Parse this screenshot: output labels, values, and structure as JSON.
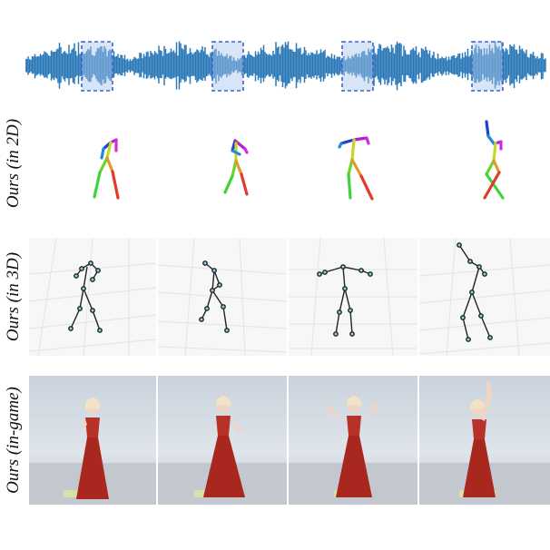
{
  "labels": {
    "row_2d": "Ours (in 2D)",
    "row_3d": "Ours (in 3D)",
    "row_game": "Ours (in-game)"
  },
  "waveform": {
    "color": "#2a78b8",
    "highlight_color": "#4a6fcf",
    "segments_highlighted": 4
  },
  "frames": 4,
  "colors": {
    "skeleton_3d_bone": "#222222",
    "skeleton_3d_joint": "#7fd6e6",
    "costume": "#b8322a",
    "skin": "#f0d4c4",
    "hair": "#f2e2c6"
  }
}
